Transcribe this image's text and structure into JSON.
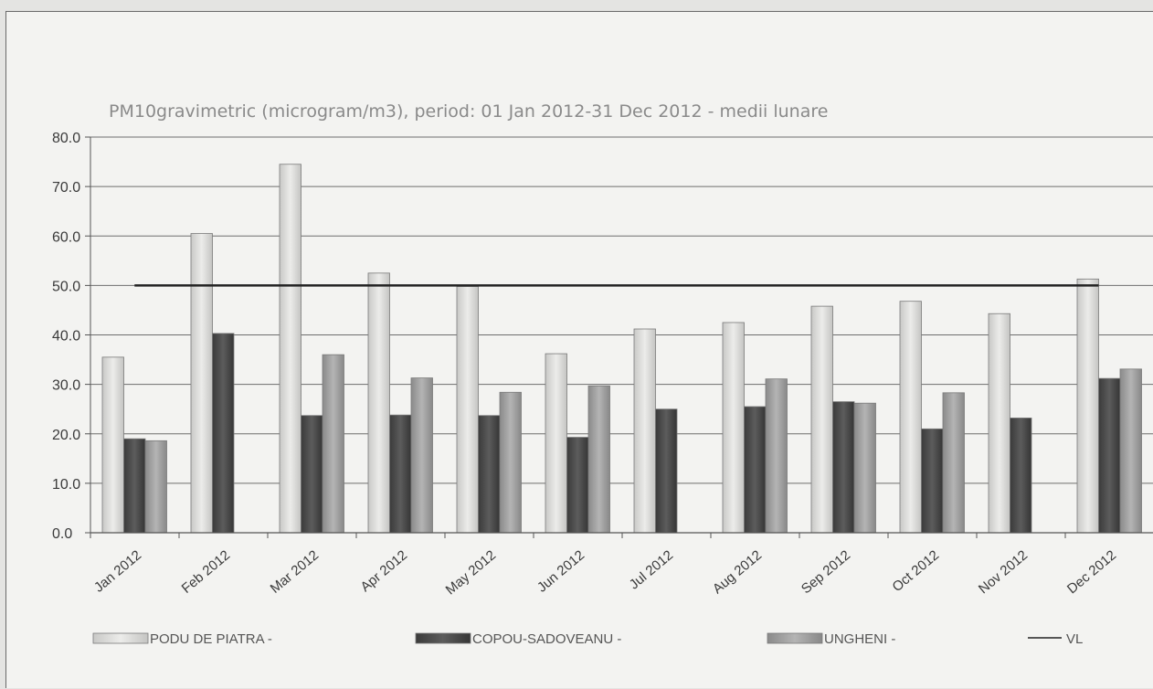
{
  "chart_data": {
    "type": "bar",
    "title": "PM10gravimetric (microgram/m3), period: 01 Jan 2012-31 Dec 2012 - medii lunare",
    "xlabel": "",
    "ylabel": "",
    "ylim": [
      0,
      80
    ],
    "yticks": [
      "0.0",
      "10.0",
      "20.0",
      "30.0",
      "40.0",
      "50.0",
      "60.0",
      "70.0",
      "80.0"
    ],
    "grid": true,
    "legend_position": "bottom",
    "categories": [
      "Jan 2012",
      "Feb 2012",
      "Mar 2012",
      "Apr 2012",
      "May 2012",
      "Jun 2012",
      "Jul 2012",
      "Aug 2012",
      "Sep 2012",
      "Oct 2012",
      "Nov 2012",
      "Dec 2012"
    ],
    "series": [
      {
        "name": "PODU DE PIATRA -",
        "color": "#d9d9d7",
        "values": [
          35.5,
          60.5,
          74.5,
          52.5,
          49.8,
          36.2,
          41.2,
          42.5,
          45.8,
          46.8,
          44.3,
          51.3
        ]
      },
      {
        "name": "COPOU-SADOVEANU -",
        "color": "#4b4b4b",
        "values": [
          19.0,
          40.3,
          23.7,
          23.8,
          23.7,
          19.3,
          25.0,
          25.5,
          26.5,
          21.0,
          23.2,
          31.2
        ]
      },
      {
        "name": "UNGHENI -",
        "color": "#9a9a9a",
        "values": [
          18.6,
          null,
          36.0,
          31.3,
          28.4,
          29.7,
          null,
          31.1,
          26.2,
          28.3,
          null,
          33.1
        ]
      }
    ],
    "limit_line": {
      "name": "VL",
      "value": 50,
      "color": "#222222"
    }
  }
}
